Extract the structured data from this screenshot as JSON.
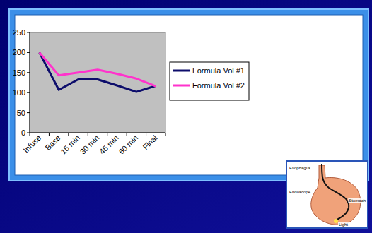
{
  "chart_data": {
    "type": "line",
    "categories": [
      "Infuse",
      "Base",
      "15 min",
      "30 min",
      "45 min",
      "60 min",
      "Final"
    ],
    "series": [
      {
        "name": "Formula Vol #1",
        "color": "#0d0d6b",
        "values": [
          200,
          107,
          133,
          133,
          118,
          102,
          117
        ]
      },
      {
        "name": "Formula Vol #2",
        "color": "#ff33cc",
        "values": [
          200,
          143,
          150,
          157,
          147,
          135,
          116
        ]
      }
    ],
    "ylim": [
      0,
      250
    ],
    "yticks": [
      0,
      50,
      100,
      150,
      200,
      250
    ],
    "grid": false,
    "legend": "right"
  },
  "illustration": {
    "labels": [
      "Esophagus",
      "Endoscope",
      "Stomach",
      "Light"
    ]
  }
}
